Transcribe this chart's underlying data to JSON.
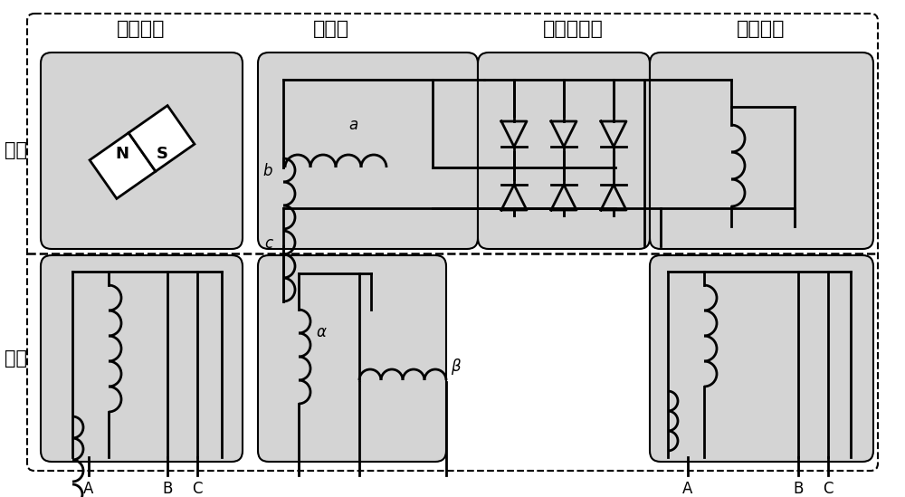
{
  "bg_color": "#ffffff",
  "box_bg": "#d4d4d4",
  "line_color": "#000000",
  "dash_color": "#000000",
  "labels_top": [
    "副励磁机",
    "励磁机",
    "旋转整流器",
    "主发电机"
  ],
  "label_rotor": "转子",
  "label_stator": "定子",
  "font_size_top": 16,
  "font_size_side": 15,
  "lw": 2.0,
  "lw_thin": 1.5
}
